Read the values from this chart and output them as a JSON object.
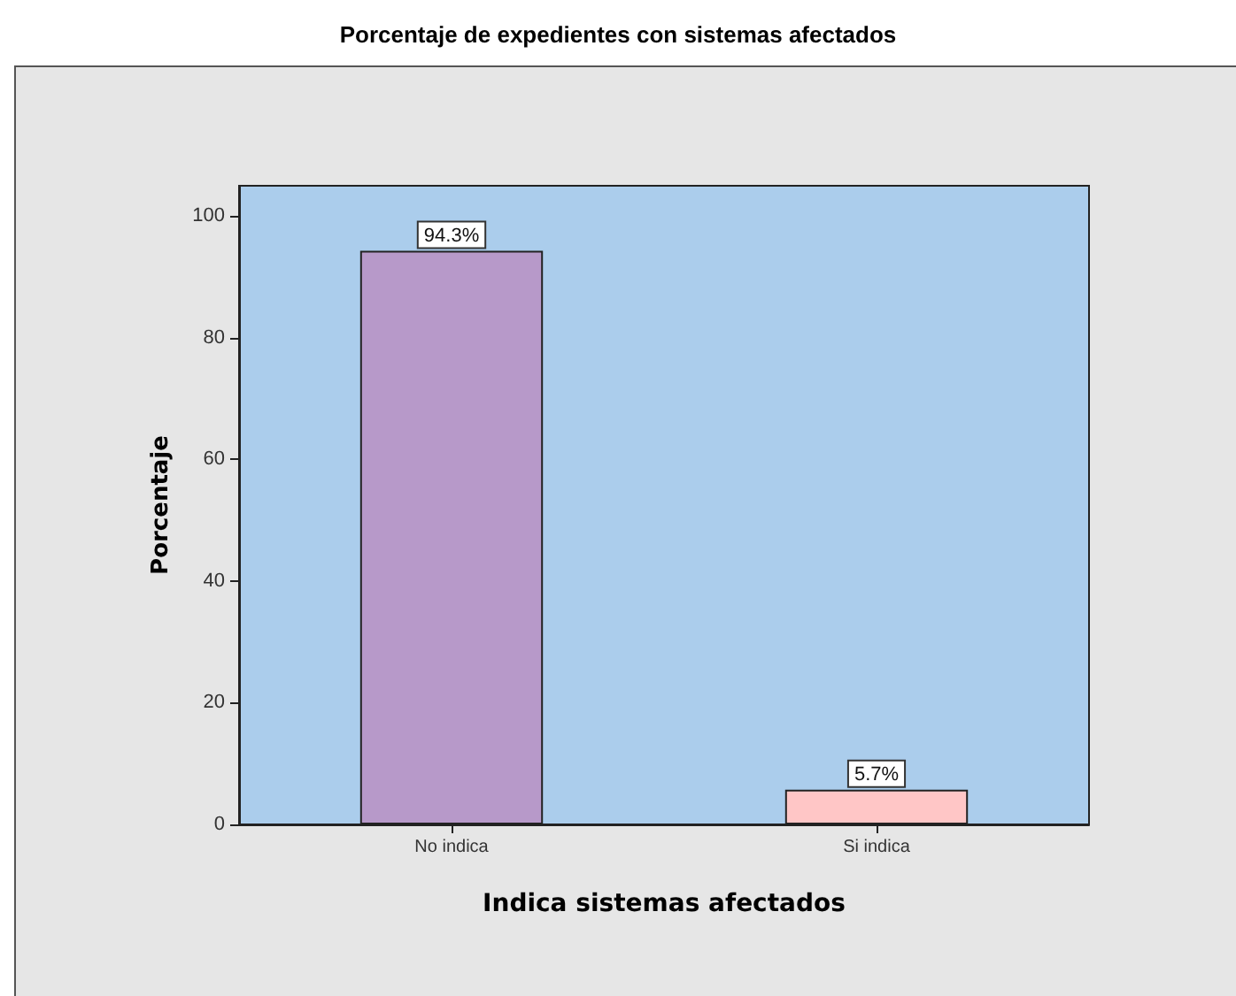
{
  "chart_data": {
    "type": "bar",
    "title": "Porcentaje de expedientes con sistemas afectados",
    "xlabel": "Indica sistemas afectados",
    "ylabel": "Porcentaje",
    "categories": [
      "No indica",
      "Si indica"
    ],
    "values": [
      94.3,
      5.7
    ],
    "colors": [
      "#b799c9",
      "#ffc6c6"
    ],
    "value_labels": [
      "94.3%",
      "5.7%"
    ],
    "ylim": [
      0,
      105
    ],
    "yticks": [
      0,
      20,
      40,
      60,
      80,
      100
    ]
  }
}
